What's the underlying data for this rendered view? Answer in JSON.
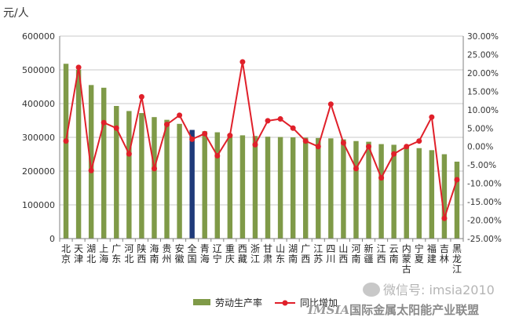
{
  "chart_data": {
    "type": "bar",
    "unit_label": "元/人",
    "categories": [
      "北京",
      "天津",
      "湖北",
      "上海",
      "广东",
      "河北",
      "陕西",
      "海南",
      "贵州",
      "安徽",
      "全国",
      "青海",
      "辽宁",
      "重庆",
      "西藏",
      "浙江",
      "甘肃",
      "山东",
      "湖南",
      "广西",
      "江苏",
      "四川",
      "山西",
      "河南",
      "新疆",
      "江西",
      "云南",
      "内蒙古",
      "宁夏",
      "福建",
      "吉林",
      "黑龙江"
    ],
    "highlight_category": "全国",
    "series": [
      {
        "name": "劳动生产率",
        "type": "bar",
        "axis": "left",
        "color": "#7f9a48",
        "values": [
          518000,
          500000,
          455000,
          447000,
          393000,
          378000,
          372000,
          360000,
          352000,
          340000,
          322000,
          318000,
          315000,
          309000,
          306000,
          304000,
          302000,
          301000,
          300000,
          299000,
          298000,
          297000,
          294000,
          289000,
          287000,
          280000,
          278000,
          276000,
          268000,
          262000,
          250000,
          228000
        ]
      },
      {
        "name": "同比增加",
        "type": "line",
        "axis": "right",
        "color": "#e0202a",
        "values": [
          1.5,
          21.5,
          -6.5,
          6.5,
          5.0,
          -2.0,
          13.5,
          -6.0,
          6.0,
          8.5,
          2.0,
          3.5,
          -2.5,
          3.0,
          23.0,
          0.5,
          7.0,
          7.5,
          5.0,
          1.5,
          0.0,
          11.5,
          1.0,
          -6.0,
          0.0,
          -8.5,
          -2.0,
          0.0,
          1.5,
          8.0,
          -19.5,
          -9.0
        ]
      }
    ],
    "y_left": {
      "min": 0,
      "max": 600000,
      "ticks": [
        "0",
        "100000",
        "200000",
        "300000",
        "400000",
        "500000",
        "600000"
      ]
    },
    "y_right": {
      "min": -25,
      "max": 30,
      "ticks": [
        "-25.00%",
        "-20.00%",
        "-15.00%",
        "-10.00%",
        "-5.00%",
        "0.00%",
        "5.00%",
        "10.00%",
        "15.00%",
        "20.00%",
        "25.00%",
        "30.00%"
      ]
    },
    "grid": true,
    "legend": "bottom-center"
  },
  "colors": {
    "bar": "#7f9a48",
    "highlight_bar": "#1f3a7a",
    "line": "#e0202a",
    "grid": "#c8c8c8",
    "axis": "#808080"
  },
  "watermark": {
    "wechat": "微信号: imsia2010",
    "org_prefix": "IMSIA",
    "org_name": "国际金属太阳能产业联盟"
  }
}
